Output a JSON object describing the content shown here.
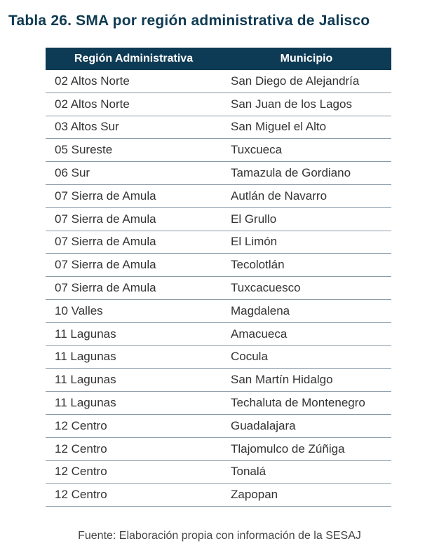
{
  "title": "Tabla 26. SMA por región administrativa de Jalisco",
  "table": {
    "headers": [
      "Región Administrativa",
      "Municipio"
    ],
    "rows": [
      [
        "02 Altos Norte",
        "San Diego de Alejandría"
      ],
      [
        "02 Altos Norte",
        "San Juan de los Lagos"
      ],
      [
        "03 Altos Sur",
        "San Miguel el Alto"
      ],
      [
        "05 Sureste",
        "Tuxcueca"
      ],
      [
        "06 Sur",
        "Tamazula de Gordiano"
      ],
      [
        "07 Sierra de Amula",
        "Autlán de Navarro"
      ],
      [
        "07 Sierra de Amula",
        "El Grullo"
      ],
      [
        "07 Sierra de Amula",
        "El Limón"
      ],
      [
        "07 Sierra de Amula",
        "Tecolotlán"
      ],
      [
        "07 Sierra de Amula",
        "Tuxcacuesco"
      ],
      [
        "10 Valles",
        "Magdalena"
      ],
      [
        "11 Lagunas",
        "Amacueca"
      ],
      [
        "11 Lagunas",
        "Cocula"
      ],
      [
        "11 Lagunas",
        "San Martín Hidalgo"
      ],
      [
        "11 Lagunas",
        "Techaluta de Montenegro"
      ],
      [
        "12 Centro",
        "Guadalajara"
      ],
      [
        "12 Centro",
        "Tlajomulco de Zúñiga"
      ],
      [
        "12 Centro",
        "Tonalá"
      ],
      [
        "12 Centro",
        "Zapopan"
      ]
    ]
  },
  "source": "Fuente: Elaboración propia con información de la SESAJ",
  "colors": {
    "header_bg": "#0d3a54",
    "title": "#0f3a52"
  }
}
